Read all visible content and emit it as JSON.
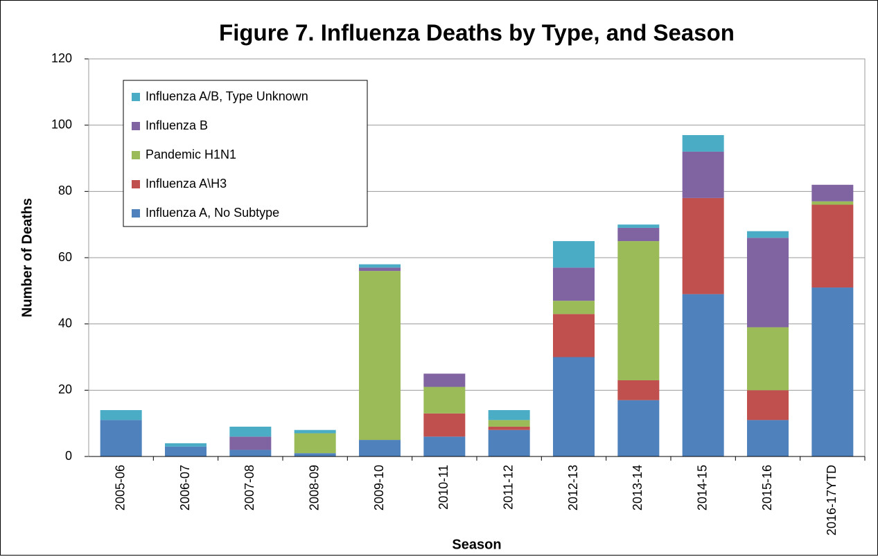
{
  "chart_data": {
    "type": "stacked_bar",
    "title": "Figure 7. Influenza Deaths by Type, and Season",
    "x_label": "Season",
    "y_label": "Number of Deaths",
    "categories": [
      "2005-06",
      "2006-07",
      "2007-08",
      "2008-09",
      "2009-10",
      "2010-11",
      "2011-12",
      "2012-13",
      "2013-14",
      "2014-15",
      "2015-16",
      "2016-17YTD"
    ],
    "series": [
      {
        "name": "Influenza A, No Subtype",
        "color": "#4f81bd",
        "values": [
          11,
          3,
          2,
          1,
          5,
          6,
          8,
          30,
          17,
          49,
          11,
          51
        ]
      },
      {
        "name": "Influenza A\\H3",
        "color": "#c0504d",
        "values": [
          0,
          0,
          0,
          0,
          0,
          7,
          1,
          13,
          6,
          29,
          9,
          25
        ]
      },
      {
        "name": "Pandemic H1N1",
        "color": "#9bbb59",
        "values": [
          0,
          0,
          0,
          6,
          51,
          8,
          2,
          4,
          42,
          0,
          19,
          1
        ]
      },
      {
        "name": "Influenza B",
        "color": "#8064a2",
        "values": [
          0,
          0,
          4,
          0,
          1,
          4,
          0,
          10,
          4,
          14,
          27,
          5
        ]
      },
      {
        "name": "Influenza A/B, Type Unknown",
        "color": "#4bacc6",
        "values": [
          3,
          1,
          3,
          1,
          1,
          0,
          3,
          8,
          1,
          5,
          2,
          0
        ]
      }
    ],
    "ylim": [
      0,
      120
    ],
    "yticks": [
      0,
      20,
      40,
      60,
      80,
      100,
      120
    ],
    "grid": true,
    "legend": "upper-left"
  }
}
